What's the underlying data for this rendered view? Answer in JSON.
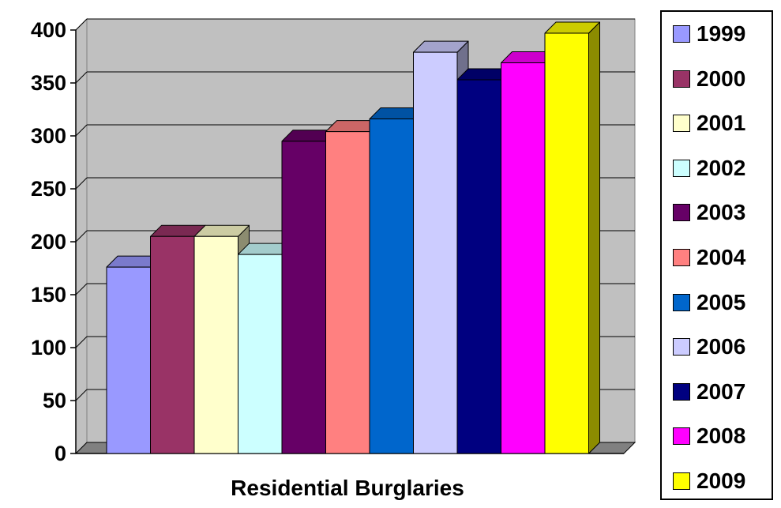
{
  "chart_data": {
    "type": "bar",
    "categories": [
      "1999",
      "2000",
      "2001",
      "2002",
      "2003",
      "2004",
      "2005",
      "2006",
      "2007",
      "2008",
      "2009"
    ],
    "values": [
      176,
      205,
      205,
      188,
      295,
      304,
      316,
      379,
      353,
      369,
      397
    ],
    "colors": [
      "#9999FF",
      "#993366",
      "#FFFFCC",
      "#CCFFFF",
      "#660066",
      "#FF8080",
      "#0066CC",
      "#CCCCFF",
      "#000080",
      "#FF00FF",
      "#FFFF00"
    ],
    "title": "",
    "xlabel": "Residential Burglaries",
    "ylabel": "",
    "ylim": [
      0,
      400
    ],
    "yticks": [
      "0",
      "50",
      "100",
      "150",
      "200",
      "250",
      "300",
      "350",
      "400"
    ],
    "grid": true,
    "three_d": true,
    "legend_placement": "right",
    "legend": [
      "1999",
      "2000",
      "2001",
      "2002",
      "2003",
      "2004",
      "2005",
      "2006",
      "2007",
      "2008",
      "2009"
    ]
  }
}
